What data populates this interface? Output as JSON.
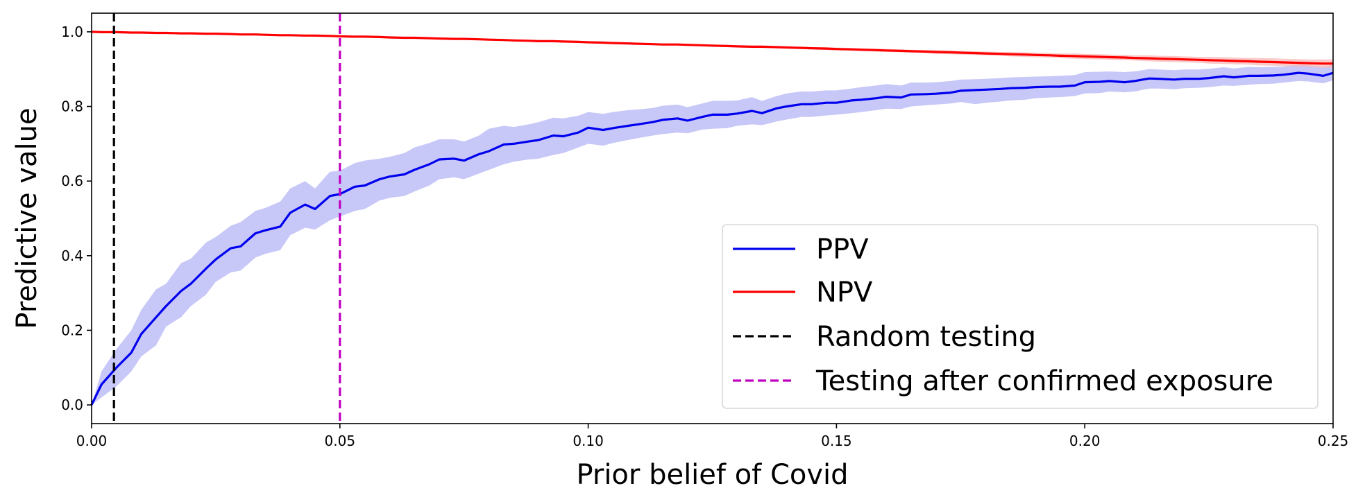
{
  "chart_data": {
    "type": "line",
    "xlabel": "Prior belief of Covid",
    "ylabel": "Predictive value",
    "xlim": [
      0.0,
      0.25
    ],
    "ylim": [
      -0.05,
      1.05
    ],
    "xticks": [
      0.0,
      0.05,
      0.1,
      0.15,
      0.2,
      0.25
    ],
    "xtick_labels": [
      "0.00",
      "0.05",
      "0.10",
      "0.15",
      "0.20",
      "0.25"
    ],
    "yticks": [
      0.0,
      0.2,
      0.4,
      0.6,
      0.8,
      1.0
    ],
    "ytick_labels": [
      "0.0",
      "0.2",
      "0.4",
      "0.6",
      "0.8",
      "1.0"
    ],
    "grid": false,
    "legend_position": "lower-right",
    "x": [
      0.0,
      0.002,
      0.005,
      0.008,
      0.01,
      0.013,
      0.015,
      0.018,
      0.02,
      0.023,
      0.025,
      0.028,
      0.03,
      0.033,
      0.035,
      0.038,
      0.04,
      0.043,
      0.045,
      0.048,
      0.05,
      0.053,
      0.055,
      0.058,
      0.06,
      0.063,
      0.065,
      0.068,
      0.07,
      0.073,
      0.075,
      0.078,
      0.08,
      0.083,
      0.085,
      0.088,
      0.09,
      0.093,
      0.095,
      0.098,
      0.1,
      0.103,
      0.105,
      0.108,
      0.11,
      0.113,
      0.115,
      0.118,
      0.12,
      0.123,
      0.125,
      0.128,
      0.13,
      0.133,
      0.135,
      0.138,
      0.14,
      0.143,
      0.145,
      0.148,
      0.15,
      0.153,
      0.155,
      0.158,
      0.16,
      0.163,
      0.165,
      0.168,
      0.17,
      0.173,
      0.175,
      0.178,
      0.18,
      0.183,
      0.185,
      0.188,
      0.19,
      0.193,
      0.195,
      0.198,
      0.2,
      0.203,
      0.205,
      0.208,
      0.21,
      0.213,
      0.215,
      0.218,
      0.22,
      0.223,
      0.225,
      0.228,
      0.23,
      0.233,
      0.235,
      0.238,
      0.24,
      0.243,
      0.245,
      0.248,
      0.25
    ],
    "series": [
      {
        "name": "PPV",
        "color": "#0000ee",
        "band_color": "#b4b4f5",
        "style": "solid",
        "values": [
          0.0,
          0.055,
          0.1,
          0.14,
          0.19,
          0.235,
          0.265,
          0.305,
          0.325,
          0.365,
          0.39,
          0.42,
          0.425,
          0.46,
          0.468,
          0.478,
          0.515,
          0.537,
          0.525,
          0.56,
          0.565,
          0.585,
          0.588,
          0.605,
          0.612,
          0.618,
          0.63,
          0.645,
          0.658,
          0.66,
          0.655,
          0.672,
          0.68,
          0.698,
          0.7,
          0.706,
          0.71,
          0.722,
          0.72,
          0.73,
          0.743,
          0.737,
          0.742,
          0.748,
          0.752,
          0.758,
          0.764,
          0.768,
          0.762,
          0.772,
          0.778,
          0.778,
          0.781,
          0.788,
          0.782,
          0.795,
          0.8,
          0.806,
          0.806,
          0.81,
          0.81,
          0.816,
          0.818,
          0.822,
          0.826,
          0.824,
          0.832,
          0.833,
          0.834,
          0.837,
          0.842,
          0.844,
          0.845,
          0.847,
          0.849,
          0.85,
          0.852,
          0.853,
          0.853,
          0.856,
          0.865,
          0.866,
          0.868,
          0.865,
          0.868,
          0.875,
          0.874,
          0.872,
          0.874,
          0.874,
          0.876,
          0.881,
          0.878,
          0.882,
          0.882,
          0.883,
          0.885,
          0.89,
          0.888,
          0.882,
          0.89
        ],
        "lower": [
          0.0,
          0.02,
          0.05,
          0.09,
          0.13,
          0.16,
          0.21,
          0.235,
          0.265,
          0.295,
          0.33,
          0.355,
          0.36,
          0.395,
          0.405,
          0.415,
          0.455,
          0.475,
          0.47,
          0.495,
          0.505,
          0.52,
          0.525,
          0.548,
          0.555,
          0.56,
          0.572,
          0.588,
          0.605,
          0.61,
          0.605,
          0.62,
          0.63,
          0.645,
          0.652,
          0.658,
          0.66,
          0.67,
          0.675,
          0.69,
          0.7,
          0.695,
          0.702,
          0.71,
          0.715,
          0.722,
          0.726,
          0.73,
          0.728,
          0.738,
          0.74,
          0.742,
          0.748,
          0.752,
          0.75,
          0.76,
          0.765,
          0.772,
          0.772,
          0.776,
          0.778,
          0.782,
          0.785,
          0.79,
          0.794,
          0.793,
          0.8,
          0.803,
          0.805,
          0.808,
          0.812,
          0.806,
          0.81,
          0.813,
          0.816,
          0.818,
          0.822,
          0.824,
          0.825,
          0.828,
          0.835,
          0.836,
          0.84,
          0.838,
          0.84,
          0.848,
          0.848,
          0.846,
          0.849,
          0.85,
          0.852,
          0.856,
          0.855,
          0.858,
          0.86,
          0.861,
          0.864,
          0.868,
          0.867,
          0.862,
          0.87
        ],
        "upper": [
          0.0,
          0.09,
          0.15,
          0.2,
          0.255,
          0.31,
          0.325,
          0.38,
          0.392,
          0.435,
          0.45,
          0.48,
          0.49,
          0.52,
          0.528,
          0.545,
          0.58,
          0.6,
          0.58,
          0.625,
          0.628,
          0.648,
          0.655,
          0.66,
          0.665,
          0.675,
          0.69,
          0.702,
          0.712,
          0.712,
          0.706,
          0.722,
          0.74,
          0.748,
          0.745,
          0.752,
          0.758,
          0.77,
          0.768,
          0.775,
          0.785,
          0.78,
          0.785,
          0.79,
          0.792,
          0.796,
          0.802,
          0.805,
          0.798,
          0.808,
          0.815,
          0.815,
          0.816,
          0.825,
          0.815,
          0.828,
          0.835,
          0.84,
          0.84,
          0.843,
          0.843,
          0.848,
          0.852,
          0.856,
          0.86,
          0.856,
          0.864,
          0.864,
          0.865,
          0.868,
          0.872,
          0.873,
          0.874,
          0.876,
          0.878,
          0.879,
          0.88,
          0.881,
          0.882,
          0.884,
          0.892,
          0.893,
          0.894,
          0.892,
          0.894,
          0.9,
          0.899,
          0.897,
          0.899,
          0.899,
          0.901,
          0.905,
          0.902,
          0.906,
          0.905,
          0.906,
          0.907,
          0.912,
          0.91,
          0.905,
          0.912
        ]
      },
      {
        "name": "NPV",
        "color": "#ff0000",
        "band_color": "#f8b8b8",
        "style": "solid",
        "values": [
          1.0,
          0.999,
          0.999,
          0.998,
          0.998,
          0.997,
          0.997,
          0.996,
          0.996,
          0.995,
          0.995,
          0.994,
          0.993,
          0.993,
          0.992,
          0.991,
          0.991,
          0.99,
          0.99,
          0.989,
          0.988,
          0.987,
          0.987,
          0.986,
          0.985,
          0.984,
          0.984,
          0.983,
          0.982,
          0.981,
          0.981,
          0.98,
          0.979,
          0.978,
          0.977,
          0.976,
          0.975,
          0.975,
          0.974,
          0.973,
          0.972,
          0.971,
          0.97,
          0.969,
          0.968,
          0.967,
          0.966,
          0.966,
          0.965,
          0.964,
          0.963,
          0.962,
          0.961,
          0.96,
          0.96,
          0.959,
          0.958,
          0.957,
          0.956,
          0.955,
          0.954,
          0.953,
          0.952,
          0.951,
          0.95,
          0.949,
          0.948,
          0.947,
          0.946,
          0.945,
          0.944,
          0.943,
          0.942,
          0.941,
          0.94,
          0.939,
          0.938,
          0.937,
          0.936,
          0.935,
          0.934,
          0.933,
          0.932,
          0.931,
          0.93,
          0.929,
          0.928,
          0.927,
          0.926,
          0.925,
          0.924,
          0.923,
          0.922,
          0.921,
          0.92,
          0.919,
          0.918,
          0.917,
          0.916,
          0.915,
          0.915
        ],
        "lower": [
          1.0,
          0.998,
          0.998,
          0.997,
          0.997,
          0.996,
          0.996,
          0.995,
          0.995,
          0.994,
          0.994,
          0.993,
          0.992,
          0.992,
          0.991,
          0.99,
          0.99,
          0.989,
          0.989,
          0.988,
          0.987,
          0.986,
          0.986,
          0.985,
          0.984,
          0.983,
          0.983,
          0.982,
          0.981,
          0.98,
          0.98,
          0.979,
          0.978,
          0.977,
          0.976,
          0.975,
          0.974,
          0.974,
          0.973,
          0.971,
          0.97,
          0.969,
          0.968,
          0.967,
          0.966,
          0.965,
          0.964,
          0.964,
          0.963,
          0.962,
          0.96,
          0.959,
          0.958,
          0.957,
          0.957,
          0.956,
          0.955,
          0.954,
          0.953,
          0.951,
          0.95,
          0.949,
          0.948,
          0.947,
          0.946,
          0.945,
          0.944,
          0.943,
          0.941,
          0.94,
          0.939,
          0.938,
          0.937,
          0.936,
          0.934,
          0.933,
          0.932,
          0.931,
          0.93,
          0.928,
          0.927,
          0.926,
          0.925,
          0.924,
          0.923,
          0.921,
          0.92,
          0.919,
          0.918,
          0.917,
          0.915,
          0.914,
          0.913,
          0.912,
          0.91,
          0.909,
          0.908,
          0.907,
          0.906,
          0.904,
          0.904
        ],
        "upper": [
          1.0,
          1.0,
          1.0,
          0.999,
          0.999,
          0.998,
          0.998,
          0.997,
          0.997,
          0.996,
          0.996,
          0.995,
          0.994,
          0.994,
          0.993,
          0.992,
          0.992,
          0.991,
          0.991,
          0.99,
          0.989,
          0.988,
          0.988,
          0.987,
          0.986,
          0.985,
          0.985,
          0.984,
          0.983,
          0.982,
          0.982,
          0.981,
          0.98,
          0.979,
          0.978,
          0.977,
          0.976,
          0.976,
          0.975,
          0.975,
          0.974,
          0.973,
          0.972,
          0.971,
          0.97,
          0.969,
          0.968,
          0.968,
          0.967,
          0.966,
          0.966,
          0.965,
          0.964,
          0.963,
          0.963,
          0.962,
          0.961,
          0.96,
          0.959,
          0.959,
          0.958,
          0.957,
          0.956,
          0.955,
          0.954,
          0.953,
          0.952,
          0.951,
          0.951,
          0.95,
          0.949,
          0.948,
          0.947,
          0.946,
          0.946,
          0.945,
          0.944,
          0.943,
          0.942,
          0.942,
          0.941,
          0.94,
          0.939,
          0.938,
          0.937,
          0.937,
          0.936,
          0.935,
          0.934,
          0.933,
          0.933,
          0.932,
          0.931,
          0.93,
          0.93,
          0.929,
          0.928,
          0.927,
          0.926,
          0.926,
          0.926
        ]
      }
    ],
    "vlines": [
      {
        "name": "Random testing",
        "x": 0.0045,
        "color": "#000000",
        "style": "dashed"
      },
      {
        "name": "Testing after confirmed exposure",
        "x": 0.05,
        "color": "#c000c0",
        "style": "dashed"
      }
    ]
  }
}
